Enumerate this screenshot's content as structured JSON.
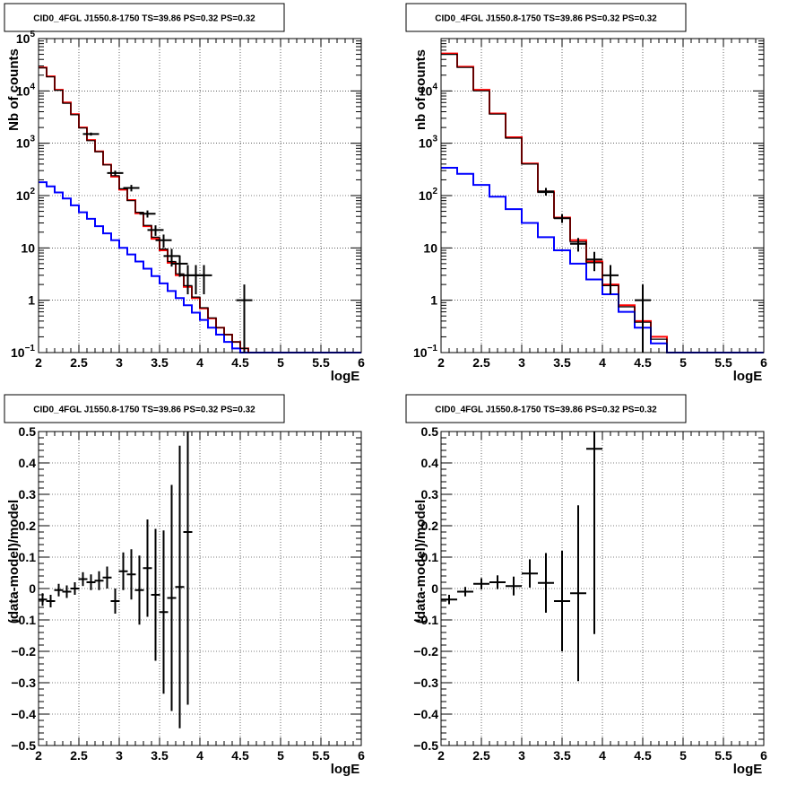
{
  "chart_data": [
    {
      "type": "line",
      "panel": "top-left",
      "title": "CID0_4FGL J1550.8-1750 TS=39.86 PS=0.32 PS=0.32",
      "xlabel": "logE",
      "ylabel": "Nb of counts",
      "xlim": [
        2,
        6
      ],
      "ylim": [
        0.1,
        100000
      ],
      "yscale": "log",
      "grid": true,
      "xticks": [
        "2",
        "2.5",
        "3",
        "3.5",
        "4",
        "4.5",
        "5",
        "5.5",
        "6"
      ],
      "yticks": [
        {
          "value": 0.1,
          "base": "10",
          "exp": "−1"
        },
        {
          "value": 1,
          "base": "1",
          "exp": ""
        },
        {
          "value": 10,
          "base": "10",
          "exp": ""
        },
        {
          "value": 100,
          "base": "10",
          "exp": "2"
        },
        {
          "value": 1000,
          "base": "10",
          "exp": "3"
        },
        {
          "value": 10000,
          "base": "10",
          "exp": "4"
        },
        {
          "value": 100000,
          "base": "10",
          "exp": "5"
        }
      ],
      "bin_edges": [
        2.0,
        2.1,
        2.2,
        2.3,
        2.4,
        2.5,
        2.6,
        2.7,
        2.8,
        2.9,
        3.0,
        3.1,
        3.2,
        3.3,
        3.4,
        3.5,
        3.6,
        3.7,
        3.8,
        3.9,
        4.0,
        4.1,
        4.2,
        4.3,
        4.4,
        4.5,
        4.6,
        4.7,
        4.8,
        4.9,
        5.0,
        5.1,
        5.2,
        5.3,
        5.4,
        5.5,
        5.6,
        5.7,
        5.8,
        5.9,
        6.0
      ],
      "series": [
        {
          "color": "#ff0000",
          "style": "hist",
          "values": [
            28000,
            19000,
            10500,
            6000,
            3600,
            2000,
            1150,
            700,
            390,
            230,
            130,
            82,
            46,
            26,
            15,
            9,
            5.2,
            3.0,
            1.8,
            1.1,
            0.7,
            0.45,
            0.3,
            0.22,
            0.16,
            0.12,
            0.1,
            0.1,
            0.1,
            0.1,
            0.1,
            0.1,
            0.1,
            0.1,
            0.1,
            0.1,
            0.1,
            0.1,
            0.1,
            0.1
          ]
        },
        {
          "color": "#0000ff",
          "style": "hist",
          "values": [
            180,
            150,
            115,
            88,
            65,
            48,
            36,
            26,
            19,
            14,
            10,
            7.5,
            5.5,
            4.0,
            2.9,
            2.1,
            1.5,
            1.1,
            0.8,
            0.58,
            0.42,
            0.3,
            0.22,
            0.16,
            0.12,
            0.1,
            0.1,
            0.1,
            0.1,
            0.1,
            0.1,
            0.1,
            0.1,
            0.1,
            0.1,
            0.1,
            0.1,
            0.1,
            0.1,
            0.1
          ]
        },
        {
          "color": "#000000",
          "style": "hist",
          "values": [
            27500,
            18500,
            10300,
            5800,
            3500,
            1950,
            1120,
            690,
            385,
            240,
            135,
            80,
            48,
            27,
            16,
            9.5,
            5.5,
            3.2,
            1.9,
            1.15,
            0.72,
            0.46,
            0.3,
            0.22,
            0.16,
            0.12,
            0.1,
            0.1,
            0.1,
            0.1,
            0.1,
            0.1,
            0.1,
            0.1,
            0.1,
            0.1,
            0.1,
            0.1,
            0.1,
            0.1
          ]
        },
        {
          "color": "#000000",
          "style": "points",
          "points": [
            {
              "x": 2.65,
              "y": 1500,
              "lo": 1400,
              "hi": 1600
            },
            {
              "x": 2.95,
              "y": 270,
              "lo": 240,
              "hi": 300
            },
            {
              "x": 3.15,
              "y": 140,
              "lo": 120,
              "hi": 160
            },
            {
              "x": 3.35,
              "y": 45,
              "lo": 38,
              "hi": 52
            },
            {
              "x": 3.45,
              "y": 22,
              "lo": 17,
              "hi": 27
            },
            {
              "x": 3.55,
              "y": 14,
              "lo": 10,
              "hi": 18
            },
            {
              "x": 3.65,
              "y": 7,
              "lo": 4.4,
              "hi": 9.6
            },
            {
              "x": 3.75,
              "y": 5,
              "lo": 2.8,
              "hi": 7.2
            },
            {
              "x": 3.85,
              "y": 3,
              "lo": 1.3,
              "hi": 4.7
            },
            {
              "x": 3.95,
              "y": 3,
              "lo": 1.3,
              "hi": 4.7
            },
            {
              "x": 4.05,
              "y": 3,
              "lo": 1.3,
              "hi": 4.7
            },
            {
              "x": 4.55,
              "y": 1,
              "lo": 0.1,
              "hi": 2
            }
          ]
        }
      ]
    },
    {
      "type": "line",
      "panel": "top-right",
      "title": "CID0_4FGL J1550.8-1750 TS=39.86 PS=0.32 PS=0.32",
      "xlabel": "logE",
      "ylabel": "nb of counts",
      "xlim": [
        2,
        6
      ],
      "ylim": [
        0.1,
        100000
      ],
      "yscale": "log",
      "grid": true,
      "xticks": [
        "2",
        "2.5",
        "3",
        "3.5",
        "4",
        "4.5",
        "5",
        "5.5",
        "6"
      ],
      "yticks": [
        {
          "value": 0.1,
          "base": "10",
          "exp": "−1"
        },
        {
          "value": 1,
          "base": "1",
          "exp": ""
        },
        {
          "value": 10,
          "base": "10",
          "exp": ""
        },
        {
          "value": 100,
          "base": "10",
          "exp": "2"
        },
        {
          "value": 1000,
          "base": "10",
          "exp": "3"
        },
        {
          "value": 10000,
          "base": "10",
          "exp": "4"
        }
      ],
      "bin_edges": [
        2.0,
        2.2,
        2.4,
        2.6,
        2.8,
        3.0,
        3.2,
        3.4,
        3.6,
        3.8,
        4.0,
        4.2,
        4.4,
        4.6,
        4.8,
        5.0,
        5.2,
        5.4,
        5.6,
        5.8,
        6.0
      ],
      "series": [
        {
          "color": "#ff0000",
          "style": "hist",
          "values": [
            52000,
            29000,
            10500,
            3700,
            1300,
            410,
            120,
            38,
            14,
            5.5,
            2.0,
            0.8,
            0.4,
            0.2,
            0.1,
            0.1,
            0.1,
            0.1,
            0.1,
            0.1
          ]
        },
        {
          "color": "#0000ff",
          "style": "hist",
          "values": [
            340,
            260,
            160,
            95,
            55,
            30,
            16,
            9,
            5,
            2.5,
            1.3,
            0.6,
            0.3,
            0.15,
            0.1,
            0.1,
            0.1,
            0.1,
            0.1,
            0.1
          ]
        },
        {
          "color": "#000000",
          "style": "hist",
          "values": [
            50000,
            28000,
            10000,
            3600,
            1250,
            400,
            115,
            37,
            13,
            5.2,
            1.9,
            0.75,
            0.38,
            0.18,
            0.1,
            0.1,
            0.1,
            0.1,
            0.1,
            0.1
          ]
        },
        {
          "color": "#000000",
          "style": "points",
          "points": [
            {
              "x": 3.3,
              "y": 120,
              "lo": 100,
              "hi": 140
            },
            {
              "x": 3.5,
              "y": 37,
              "lo": 30,
              "hi": 44
            },
            {
              "x": 3.7,
              "y": 12,
              "lo": 8.5,
              "hi": 15.5
            },
            {
              "x": 3.9,
              "y": 6,
              "lo": 3.6,
              "hi": 8.4
            },
            {
              "x": 4.1,
              "y": 3,
              "lo": 1.3,
              "hi": 4.7
            },
            {
              "x": 4.5,
              "y": 1,
              "lo": 0.1,
              "hi": 2
            }
          ]
        }
      ]
    },
    {
      "type": "scatter",
      "panel": "bottom-left",
      "title": "CID0_4FGL J1550.8-1750 TS=39.86 PS=0.32 PS=0.32",
      "xlabel": "logE",
      "ylabel": "(data-model)/model",
      "xlim": [
        2,
        6
      ],
      "ylim": [
        -0.5,
        0.5
      ],
      "grid": true,
      "xticks": [
        "2",
        "2.5",
        "3",
        "3.5",
        "4",
        "4.5",
        "5",
        "5.5",
        "6"
      ],
      "yticks": [
        "−0.5",
        "−0.4",
        "−0.3",
        "−0.2",
        "−0.1",
        "0",
        "0.1",
        "0.2",
        "0.3",
        "0.4",
        "0.5"
      ],
      "points": [
        {
          "x": 2.05,
          "y": -0.035,
          "err": 0.02
        },
        {
          "x": 2.15,
          "y": -0.04,
          "err": 0.02
        },
        {
          "x": 2.25,
          "y": -0.005,
          "err": 0.02
        },
        {
          "x": 2.35,
          "y": -0.01,
          "err": 0.02
        },
        {
          "x": 2.45,
          "y": 0.0,
          "err": 0.02
        },
        {
          "x": 2.55,
          "y": 0.03,
          "err": 0.022
        },
        {
          "x": 2.65,
          "y": 0.02,
          "err": 0.025
        },
        {
          "x": 2.75,
          "y": 0.025,
          "err": 0.03
        },
        {
          "x": 2.85,
          "y": 0.035,
          "err": 0.035
        },
        {
          "x": 2.95,
          "y": -0.04,
          "err": 0.04
        },
        {
          "x": 3.05,
          "y": 0.055,
          "err": 0.06
        },
        {
          "x": 3.15,
          "y": 0.045,
          "err": 0.08
        },
        {
          "x": 3.25,
          "y": -0.005,
          "err": 0.11
        },
        {
          "x": 3.35,
          "y": 0.065,
          "err": 0.155
        },
        {
          "x": 3.45,
          "y": -0.02,
          "err": 0.21
        },
        {
          "x": 3.55,
          "y": -0.075,
          "err": 0.26
        },
        {
          "x": 3.65,
          "y": -0.03,
          "err": 0.36
        },
        {
          "x": 3.75,
          "y": 0.005,
          "err": 0.45
        },
        {
          "x": 3.85,
          "y": 0.18,
          "err": 0.55
        }
      ]
    },
    {
      "type": "scatter",
      "panel": "bottom-right",
      "title": "CID0_4FGL J1550.8-1750 TS=39.86 PS=0.32 PS=0.32",
      "xlabel": "logE",
      "ylabel": "(data-model)/model",
      "xlim": [
        2,
        6
      ],
      "ylim": [
        -0.5,
        0.5
      ],
      "grid": true,
      "xticks": [
        "2",
        "2.5",
        "3",
        "3.5",
        "4",
        "4.5",
        "5",
        "5.5",
        "6"
      ],
      "yticks": [
        "−0.5",
        "−0.4",
        "−0.3",
        "−0.2",
        "−0.1",
        "0",
        "0.1",
        "0.2",
        "0.3",
        "0.4",
        "0.5"
      ],
      "points": [
        {
          "x": 2.1,
          "y": -0.035,
          "err": 0.015
        },
        {
          "x": 2.3,
          "y": -0.01,
          "err": 0.015
        },
        {
          "x": 2.5,
          "y": 0.015,
          "err": 0.018
        },
        {
          "x": 2.7,
          "y": 0.02,
          "err": 0.022
        },
        {
          "x": 2.9,
          "y": 0.008,
          "err": 0.03
        },
        {
          "x": 3.1,
          "y": 0.048,
          "err": 0.045
        },
        {
          "x": 3.3,
          "y": 0.018,
          "err": 0.095
        },
        {
          "x": 3.5,
          "y": -0.04,
          "err": 0.16
        },
        {
          "x": 3.7,
          "y": -0.015,
          "err": 0.28
        },
        {
          "x": 3.9,
          "y": 0.445,
          "err": 0.59
        }
      ]
    }
  ]
}
